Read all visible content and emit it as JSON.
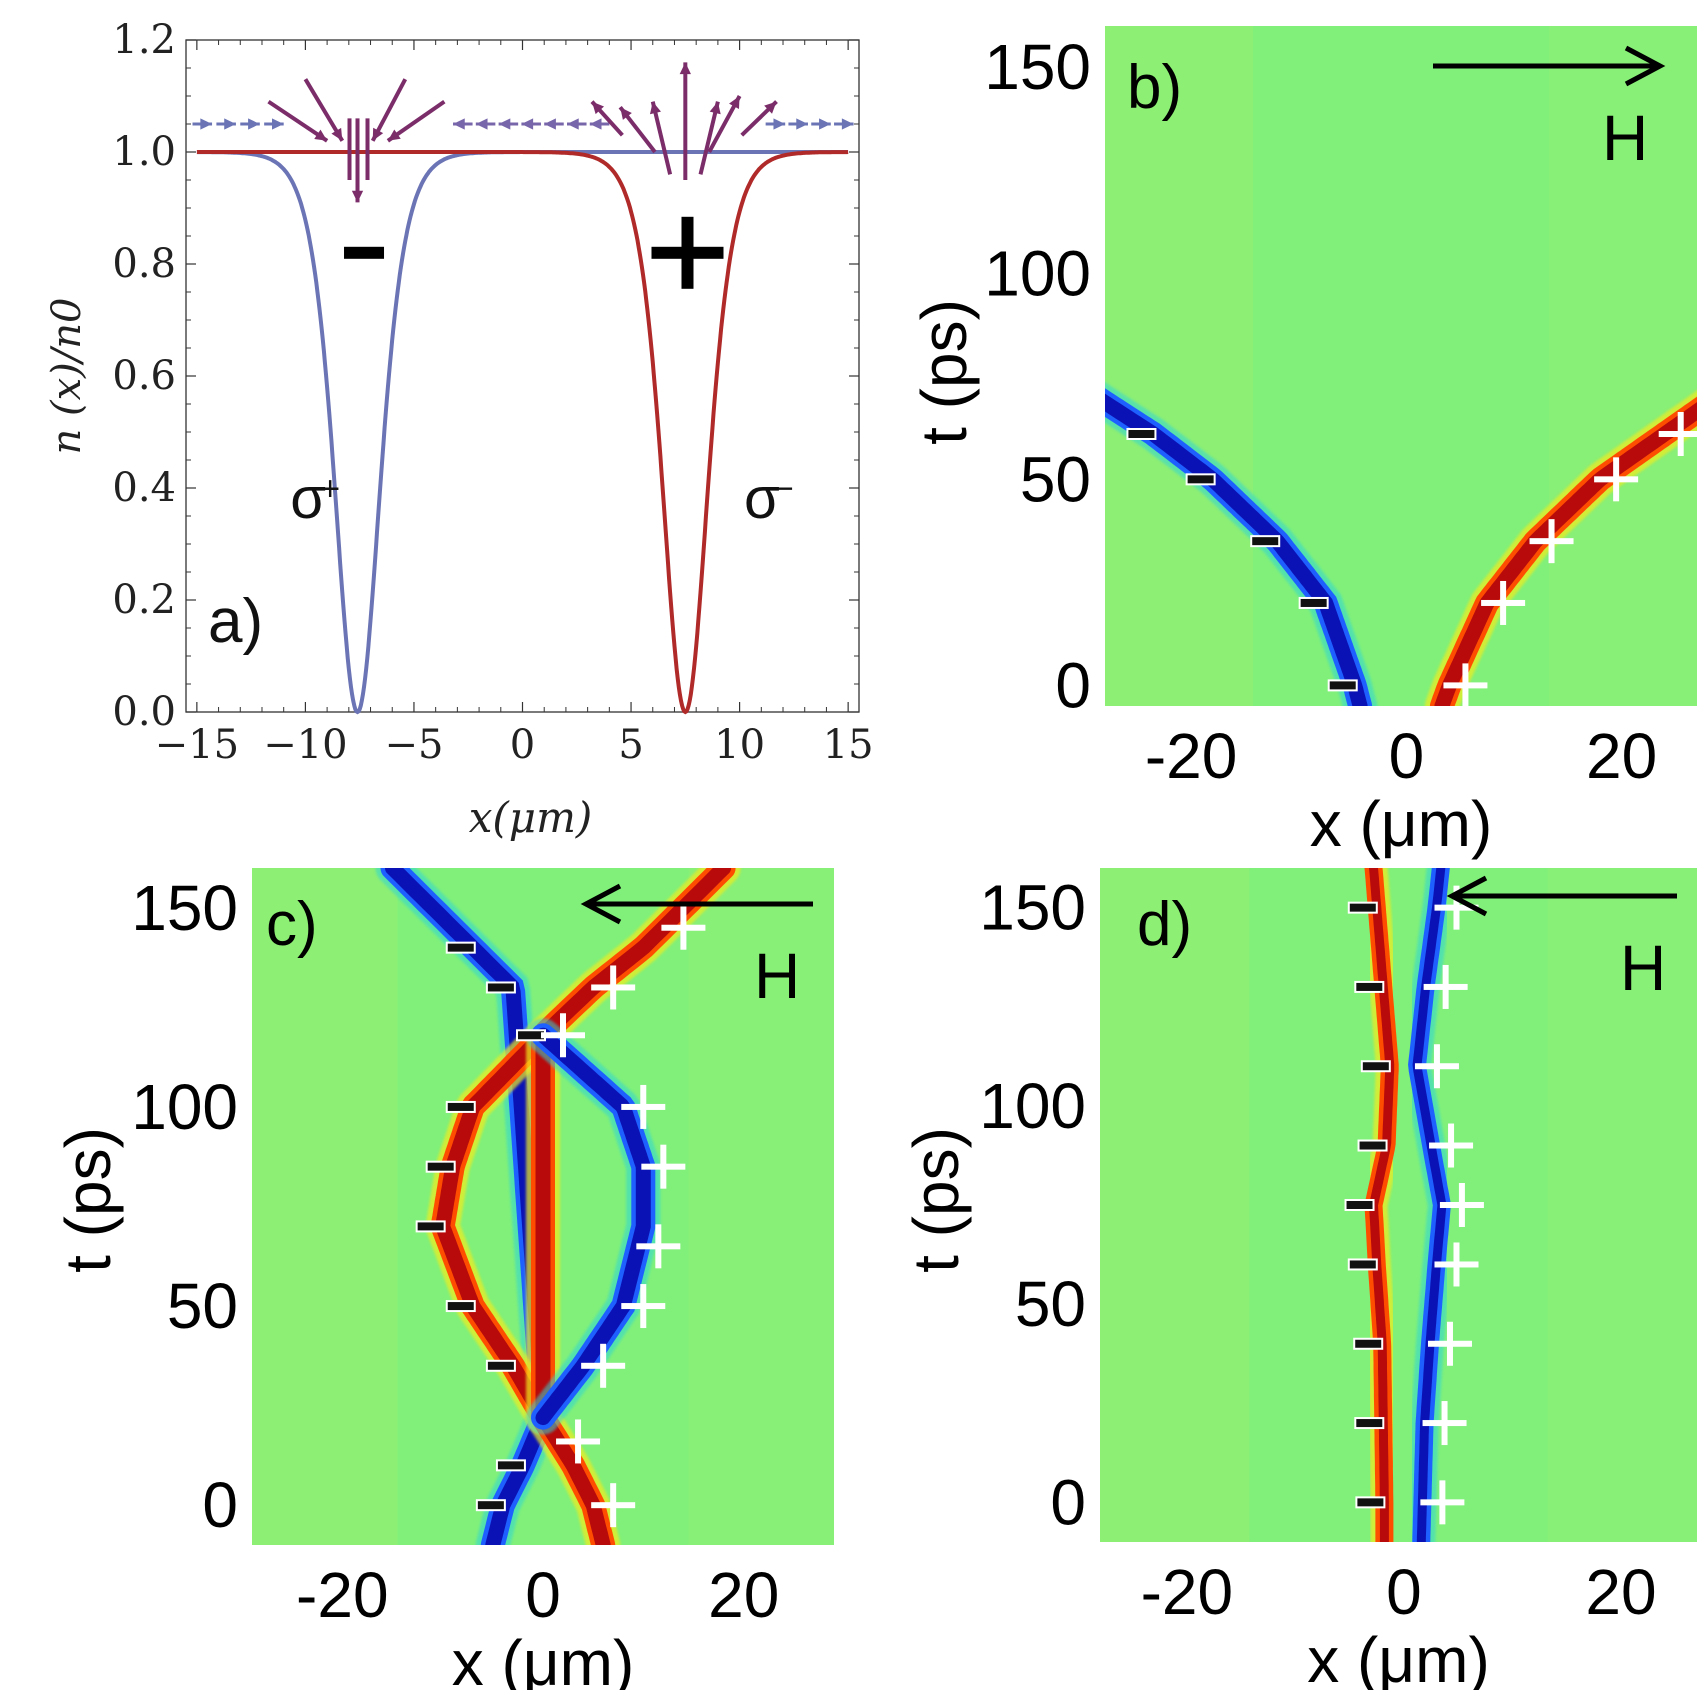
{
  "chart_data": [
    {
      "panel": "a)",
      "type": "line",
      "xlabel": "x(μm)",
      "ylabel": "n (x)/n0",
      "xlim": [
        -15.5,
        15.5
      ],
      "ylim": [
        0,
        1.2
      ],
      "xticks": [
        -15,
        -10,
        -5,
        0,
        5,
        10,
        15
      ],
      "xtick_labels": [
        "−15",
        "−10",
        "−5",
        "0",
        "5",
        "10",
        "15"
      ],
      "yticks": [
        0.0,
        0.2,
        0.4,
        0.6,
        0.8,
        1.0,
        1.2
      ],
      "ytick_labels": [
        "0.0",
        "0.2",
        "0.4",
        "0.6",
        "0.8",
        "1.0",
        "1.2"
      ],
      "series": [
        {
          "name": "σ+",
          "color": "#6b75b5",
          "center": -7.6,
          "width": 1.4,
          "x": [
            -15,
            -12,
            -10,
            -9,
            -8.5,
            -8,
            -7.6,
            -7.2,
            -6.7,
            -6.2,
            -5,
            -3,
            0,
            15
          ],
          "y": [
            1.0,
            1.0,
            0.98,
            0.92,
            0.6,
            0.2,
            0.0,
            0.2,
            0.6,
            0.88,
            0.98,
            1.0,
            1.0,
            1.0
          ]
        },
        {
          "name": "σ−",
          "color": "#b02a2a",
          "center": 7.5,
          "width": 1.4,
          "x": [
            -15,
            0,
            5,
            6,
            6.5,
            7,
            7.5,
            8,
            8.5,
            9,
            10,
            12,
            15
          ],
          "y": [
            1.0,
            1.0,
            0.98,
            0.88,
            0.6,
            0.2,
            0.0,
            0.2,
            0.6,
            0.92,
            0.98,
            1.0,
            1.0
          ]
        }
      ],
      "annotations": [
        {
          "text": "-",
          "x": -7.3,
          "y": 0.82
        },
        {
          "text": "+",
          "x": 7.6,
          "y": 0.82
        },
        {
          "text": "σ+",
          "x": -10.7,
          "y": 0.4
        },
        {
          "text": "σ−",
          "x": 10.2,
          "y": 0.4
        }
      ],
      "arrow_row_y": 1.05,
      "arrow_color": "#7b2d6a",
      "side_arrow_color": "#8062a6"
    },
    {
      "panel": "b)",
      "type": "heatmap",
      "xlabel": "x (μm)",
      "ylabel": "t (ps)",
      "xlim": [
        -28,
        27
      ],
      "ylim": [
        -5,
        160
      ],
      "xticks": [
        -20,
        0,
        20
      ],
      "xtick_labels": [
        "-20",
        "0",
        "20"
      ],
      "yticks": [
        0,
        50,
        100,
        150
      ],
      "ytick_labels": [
        "0",
        "50",
        "100",
        "150"
      ],
      "field_label": "H",
      "field_direction": "right",
      "tracks": [
        {
          "sign": "-",
          "color": "blue",
          "t": [
            -5,
            0,
            20,
            35,
            50,
            61,
            72
          ],
          "x": [
            -4.3,
            -4.8,
            -7.5,
            -12,
            -18,
            -23.5,
            -30
          ],
          "markers_t": [
            0,
            20,
            35,
            50,
            61
          ]
        },
        {
          "sign": "+",
          "color": "red",
          "t": [
            -5,
            0,
            20,
            35,
            50,
            61,
            72
          ],
          "x": [
            3.3,
            4,
            7.5,
            12,
            18,
            24,
            30
          ],
          "markers_t": [
            0,
            20,
            35,
            50,
            61
          ]
        }
      ]
    },
    {
      "panel": "c)",
      "type": "heatmap",
      "xlabel": "x (μm)",
      "ylabel": "t (ps)",
      "xlim": [
        -29,
        29
      ],
      "ylim": [
        -10,
        160
      ],
      "xticks": [
        -20,
        0,
        20
      ],
      "xtick_labels": [
        "-20",
        "0",
        "20"
      ],
      "yticks": [
        0,
        50,
        100,
        150
      ],
      "ytick_labels": [
        "0",
        "50",
        "100",
        "150"
      ],
      "field_label": "H",
      "field_direction": "left",
      "tracks": [
        {
          "sign": "-",
          "color": "blue",
          "t": [
            -10,
            0,
            10,
            22,
            130,
            140,
            160
          ],
          "x": [
            -5,
            -4,
            -2,
            0,
            -3,
            -7,
            -15
          ],
          "markers_t": [
            0,
            10,
            140,
            130
          ]
        },
        {
          "sign": "-",
          "color": "red",
          "t": [
            22,
            35,
            50,
            70,
            85,
            100,
            118
          ],
          "x": [
            0,
            -3,
            -7,
            -10,
            -9,
            -7,
            0
          ],
          "markers_t": [
            50,
            70,
            85,
            100,
            118,
            35
          ]
        },
        {
          "sign": "+",
          "color": "red",
          "t": [
            -10,
            0,
            10,
            22,
            118,
            130,
            140,
            160
          ],
          "x": [
            6,
            5,
            3,
            0,
            0,
            5,
            10,
            18
          ],
          "markers_t": [
            0,
            16,
            118,
            130,
            145
          ]
        },
        {
          "sign": "+",
          "color": "blue",
          "t": [
            22,
            35,
            50,
            70,
            85,
            100,
            118
          ],
          "x": [
            0,
            4,
            8,
            10,
            10,
            8,
            0
          ],
          "markers_t": [
            35,
            50,
            65,
            85,
            100
          ]
        }
      ]
    },
    {
      "panel": "d)",
      "type": "heatmap",
      "xlabel": "x (μm)",
      "ylabel": "t (ps)",
      "xlim": [
        -28,
        27
      ],
      "ylim": [
        -10,
        160
      ],
      "xticks": [
        -20,
        0,
        20
      ],
      "xtick_labels": [
        "-20",
        "0",
        "20"
      ],
      "yticks": [
        0,
        50,
        100,
        150
      ],
      "ytick_labels": [
        "0",
        "50",
        "100",
        "150"
      ],
      "field_label": "H",
      "field_direction": "left",
      "tracks": [
        {
          "sign": "-",
          "color": "red",
          "t": [
            -10,
            0,
            20,
            40,
            60,
            75,
            90,
            110,
            130,
            150,
            160
          ],
          "x": [
            -1.8,
            -1.8,
            -1.9,
            -2,
            -2.5,
            -2.8,
            -1.6,
            -1.3,
            -1.9,
            -2.5,
            -2.8
          ],
          "markers_t": [
            0,
            20,
            40,
            60,
            75,
            90,
            110,
            130,
            150
          ]
        },
        {
          "sign": "+",
          "color": "blue",
          "t": [
            -10,
            0,
            20,
            40,
            60,
            75,
            90,
            110,
            130,
            150,
            160
          ],
          "x": [
            1.6,
            1.7,
            1.9,
            2.4,
            3,
            3.5,
            2.5,
            1.2,
            2,
            3,
            3.4
          ],
          "markers_t": [
            0,
            20,
            40,
            60,
            75,
            90,
            110,
            130,
            150
          ]
        }
      ]
    }
  ]
}
